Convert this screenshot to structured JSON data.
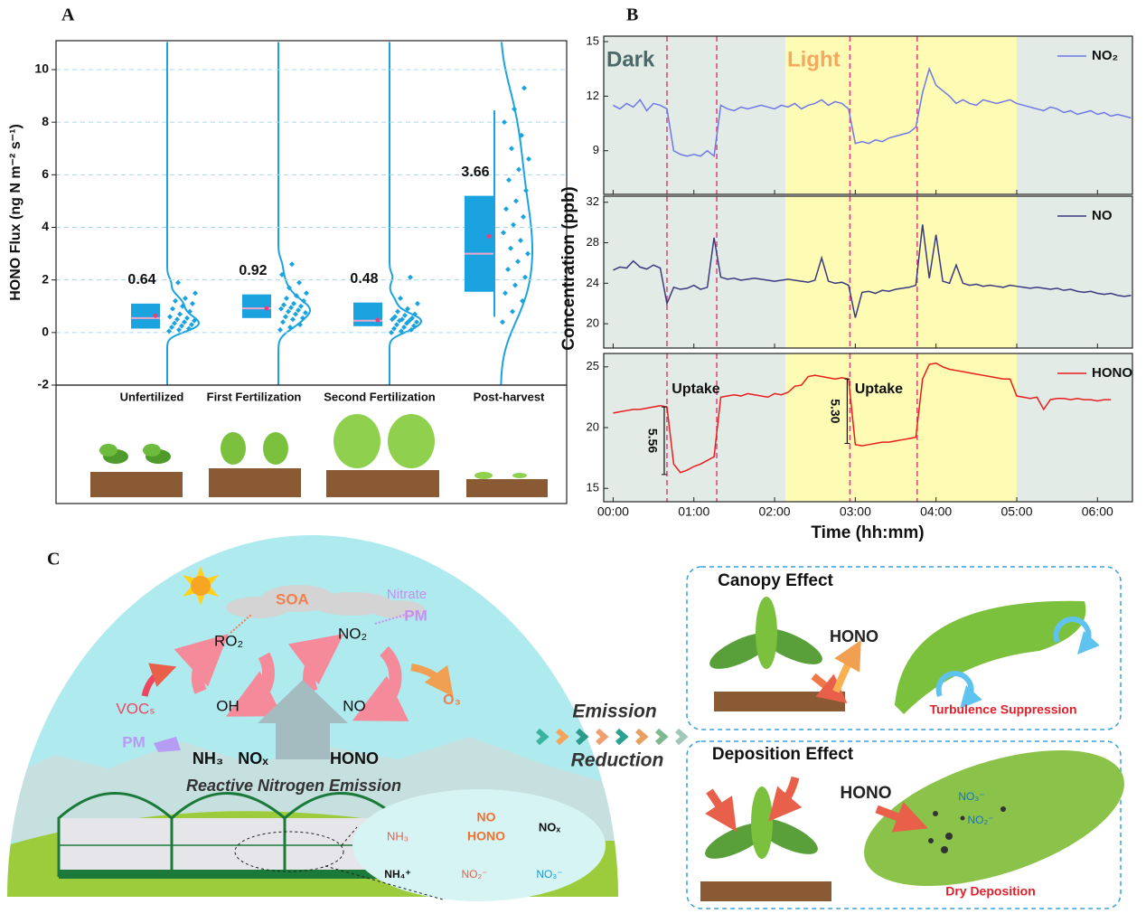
{
  "chart_data": [
    {
      "type": "raincloud",
      "label": "A",
      "ylabel": "HONO Flux (ng N m⁻² s⁻¹)",
      "categories": [
        "Unfertilized",
        "First Fertilization",
        "Second Fertilization",
        "Post-harvest"
      ],
      "ylim": [
        -2,
        11.1
      ],
      "yticks": [
        -2,
        0,
        2,
        4,
        6,
        8,
        10
      ],
      "grid": true,
      "color": "#1ba3e0",
      "mean_color": "#e8417a",
      "median_color": "#f3a6c8",
      "groups": [
        {
          "q1": 0.15,
          "median": 0.55,
          "q3": 1.1,
          "mean": 0.64,
          "points": [
            0.05,
            0.1,
            0.15,
            0.2,
            0.25,
            0.3,
            0.35,
            0.4,
            0.45,
            0.5,
            0.55,
            0.6,
            0.7,
            0.8,
            0.9,
            1.0,
            1.1,
            1.2,
            1.3,
            1.5,
            1.9
          ]
        },
        {
          "q1": 0.55,
          "median": 0.92,
          "q3": 1.45,
          "mean": 0.92,
          "points": [
            0.1,
            0.2,
            0.3,
            0.4,
            0.5,
            0.55,
            0.6,
            0.7,
            0.75,
            0.8,
            0.85,
            0.9,
            0.95,
            1.0,
            1.05,
            1.1,
            1.2,
            1.3,
            1.4,
            1.5,
            1.7,
            1.9,
            2.2,
            2.6
          ]
        },
        {
          "q1": 0.24,
          "median": 0.45,
          "q3": 1.14,
          "mean": 0.48,
          "points": [
            0.0,
            0.05,
            0.1,
            0.15,
            0.2,
            0.25,
            0.3,
            0.35,
            0.4,
            0.45,
            0.45,
            0.5,
            0.5,
            0.55,
            0.6,
            0.65,
            0.7,
            0.8,
            0.9,
            1.1,
            1.3,
            2.1
          ]
        },
        {
          "q1": 1.55,
          "median": 3.0,
          "q3": 5.2,
          "mean": 3.66,
          "whisker": [
            0.6,
            8.45
          ],
          "points": [
            0.4,
            0.8,
            1.2,
            1.5,
            1.8,
            2.1,
            2.4,
            2.7,
            3.0,
            3.2,
            3.5,
            3.8,
            4.1,
            4.4,
            4.7,
            5.0,
            5.4,
            5.8,
            6.2,
            6.6,
            7.0,
            7.5,
            8.0,
            8.5,
            9.3
          ]
        }
      ]
    },
    {
      "type": "line",
      "label": "B",
      "xlabel": "Time (hh:mm)",
      "ylabel": "Concentration (ppb)",
      "x": [
        0,
        5,
        10,
        15,
        20,
        25,
        30,
        35,
        40,
        45,
        50,
        55,
        60,
        65,
        70,
        75,
        80,
        85,
        90,
        95,
        100,
        105,
        110,
        115,
        120,
        125,
        130,
        135,
        140,
        145,
        150,
        155,
        160,
        165,
        170,
        175,
        180,
        185,
        190,
        195,
        200,
        205,
        210,
        215,
        220,
        225,
        230,
        235,
        240,
        245,
        250,
        255,
        260,
        265,
        270,
        275,
        280,
        285,
        290,
        295,
        300,
        305,
        310,
        315,
        320,
        325,
        330,
        335,
        340,
        345,
        350,
        355,
        360,
        365,
        370,
        375,
        380,
        385
      ],
      "xlim": [
        -7,
        386
      ],
      "xticks": [
        {
          "value": 0,
          "label": "00:00"
        },
        {
          "value": 60,
          "label": "01:00"
        },
        {
          "value": 120,
          "label": "02:00"
        },
        {
          "value": 180,
          "label": "03:00"
        },
        {
          "value": 240,
          "label": "04:00"
        },
        {
          "value": 300,
          "label": "05:00"
        },
        {
          "value": 360,
          "label": "06:00"
        }
      ],
      "light_period": [
        128,
        300
      ],
      "dark_color": "#e3ebe7",
      "light_color": "#fdfbb4",
      "dark_label": "Dark",
      "light_label": "Light",
      "markers": [
        40,
        77,
        176,
        226
      ],
      "marker_color": "#e0407a",
      "uptakes": [
        {
          "label": "Uptake",
          "value": 5.56
        },
        {
          "label": "Uptake",
          "value": 5.3,
          "value_label": "5.30"
        }
      ],
      "panels": [
        {
          "ylim": [
            6.6,
            15.3
          ],
          "yticks": [
            9,
            12,
            15
          ],
          "series": [
            {
              "name": "NO₂",
              "color": "#6f78e8",
              "values": [
                11.5,
                11.3,
                11.6,
                11.4,
                11.8,
                11.2,
                11.6,
                11.5,
                11.3,
                9.0,
                8.8,
                8.7,
                8.8,
                8.7,
                9.0,
                8.7,
                11.5,
                11.3,
                11.2,
                11.4,
                11.3,
                11.4,
                11.5,
                11.4,
                11.3,
                11.5,
                11.4,
                11.6,
                11.3,
                11.5,
                11.6,
                11.8,
                11.5,
                11.7,
                11.6,
                11.3,
                9.4,
                9.5,
                9.4,
                9.6,
                9.5,
                9.7,
                9.8,
                9.9,
                10.0,
                10.3,
                12.2,
                13.5,
                12.6,
                12.3,
                12.0,
                11.6,
                11.8,
                11.6,
                11.5,
                11.8,
                11.7,
                11.6,
                11.7,
                11.8,
                11.6,
                11.5,
                11.4,
                11.3,
                11.2,
                11.4,
                11.3,
                11.1,
                11.2,
                11.0,
                11.1,
                11.2,
                11.0,
                11.1,
                10.9,
                11.0,
                10.9,
                10.8
              ]
            }
          ]
        },
        {
          "ylim": [
            17.6,
            32.6
          ],
          "yticks": [
            20,
            24,
            28,
            32
          ],
          "series": [
            {
              "name": "NO",
              "color": "#3a3a80",
              "values": [
                25.3,
                25.6,
                25.5,
                26.2,
                25.6,
                25.4,
                25.8,
                25.5,
                22.0,
                23.6,
                23.4,
                23.5,
                23.8,
                23.4,
                23.6,
                28.5,
                24.6,
                24.4,
                24.5,
                24.3,
                24.4,
                24.5,
                24.4,
                24.3,
                24.2,
                24.3,
                24.4,
                24.3,
                24.2,
                24.1,
                24.3,
                26.5,
                24.2,
                24.0,
                24.1,
                23.8,
                20.6,
                23.1,
                23.2,
                23.0,
                23.3,
                23.2,
                23.4,
                23.5,
                23.6,
                23.8,
                29.8,
                24.5,
                28.8,
                24.2,
                24.0,
                25.8,
                24.0,
                23.8,
                23.9,
                23.7,
                23.8,
                23.7,
                23.6,
                23.8,
                23.7,
                23.6,
                23.5,
                23.6,
                23.5,
                23.4,
                23.5,
                23.3,
                23.4,
                23.2,
                23.1,
                23.2,
                23.0,
                22.9,
                23.0,
                22.8,
                22.7,
                22.8
              ]
            }
          ]
        },
        {
          "ylim": [
            13.9,
            26.1
          ],
          "yticks": [
            15,
            20,
            25
          ],
          "series": [
            {
              "name": "HONO",
              "color": "#e81e1e",
              "values": [
                21.2,
                21.3,
                21.4,
                21.5,
                21.5,
                21.6,
                21.7,
                21.8,
                21.7,
                17.0,
                16.3,
                16.5,
                16.8,
                17.0,
                17.3,
                17.6,
                22.5,
                22.6,
                22.7,
                22.6,
                22.8,
                22.7,
                22.6,
                22.5,
                22.8,
                22.7,
                22.9,
                23.4,
                23.5,
                24.2,
                24.3,
                24.2,
                24.1,
                24.0,
                24.1,
                24.0,
                18.6,
                18.5,
                18.6,
                18.7,
                18.8,
                18.8,
                18.9,
                19.0,
                19.1,
                19.2,
                24.0,
                25.2,
                25.3,
                25.0,
                24.8,
                24.7,
                24.6,
                24.5,
                24.4,
                24.3,
                24.2,
                24.1,
                24.0,
                24.0,
                22.6,
                22.5,
                22.4,
                22.5,
                21.5,
                22.3,
                22.4,
                22.4,
                22.3,
                22.4,
                22.3,
                22.3,
                22.2,
                22.3,
                22.3,
                null,
                null,
                null
              ]
            }
          ]
        }
      ]
    }
  ],
  "diagram": {
    "label": "C",
    "sky": {
      "soa": "SOA",
      "nitrate": "Nitrate",
      "pm": "PM",
      "ro2": "RO₂",
      "no2": "NO₂",
      "vocs": "VOCₛ",
      "oh": "OH",
      "no": "NO",
      "o3": "O₃"
    },
    "emission": {
      "pm": "PM",
      "nh3": "NH₃",
      "nox": "NOₓ",
      "hono": "HONO",
      "title": "Reactive Nitrogen Emission"
    },
    "soil": {
      "nh3": "NH₃",
      "no": "NO",
      "hono": "HONO",
      "nox": "NOₓ",
      "nh4": "NH₄⁺",
      "no2": "NO₂⁻",
      "no3": "NO₃⁻"
    },
    "arrow": {
      "emission": "Emission",
      "reduction": "Reduction"
    },
    "canopy": {
      "title": "Canopy Effect",
      "hono": "HONO",
      "caption": "Turbulence Suppression"
    },
    "deposition": {
      "title": "Deposition Effect",
      "hono": "HONO",
      "no3": "NO₃⁻",
      "no2": "NO₂⁻",
      "caption": "Dry Deposition"
    }
  }
}
